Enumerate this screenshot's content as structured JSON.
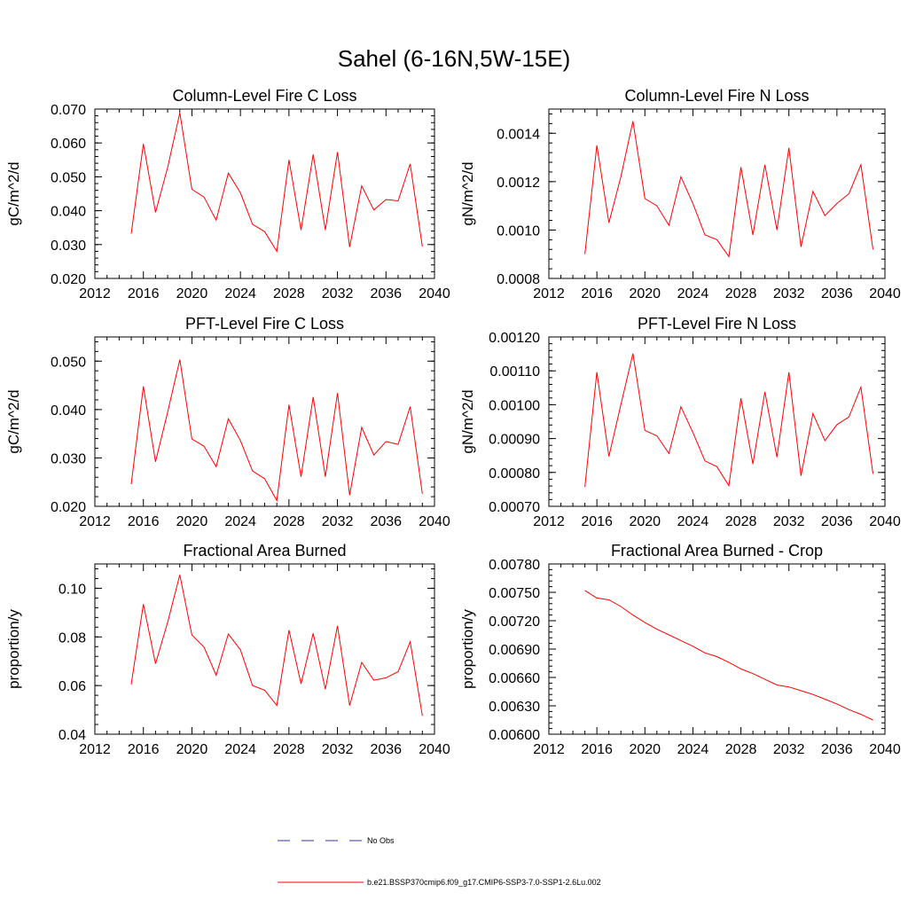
{
  "main_title": "Sahel (6-16N,5W-15E)",
  "colors": {
    "series": "#ff0000",
    "obs": "#3333aa",
    "axis": "#000000"
  },
  "legend": [
    {
      "label": "No Obs",
      "style": "dashed",
      "color": "#3333aa"
    },
    {
      "label": "b.e21.BSSP370cmip6.f09_g17.CMIP6-SSP3-7.0-SSP1-2.6Lu.002",
      "style": "solid",
      "color": "#ff0000"
    }
  ],
  "chart_data": [
    {
      "type": "line",
      "title": "Column-Level Fire C Loss",
      "ylabel": "gC/m^2/d",
      "xlim": [
        2012,
        2040
      ],
      "ylim": [
        0.02,
        0.07
      ],
      "xticks": [
        2012,
        2016,
        2020,
        2024,
        2028,
        2032,
        2036,
        2040
      ],
      "yticks": [
        "0.020",
        "0.030",
        "0.040",
        "0.050",
        "0.060",
        "0.070"
      ],
      "x": [
        2015,
        2016,
        2017,
        2018,
        2019,
        2020,
        2021,
        2022,
        2023,
        2024,
        2025,
        2026,
        2027,
        2028,
        2029,
        2030,
        2031,
        2032,
        2033,
        2034,
        2035,
        2036,
        2037,
        2038,
        2039
      ],
      "series": [
        {
          "values": [
            0.0332,
            0.0597,
            0.0395,
            0.0528,
            0.0689,
            0.0463,
            0.044,
            0.0372,
            0.0511,
            0.0453,
            0.036,
            0.0338,
            0.028,
            0.055,
            0.0343,
            0.0566,
            0.0343,
            0.0573,
            0.0293,
            0.0473,
            0.0402,
            0.0433,
            0.0429,
            0.0538,
            0.0294
          ]
        }
      ]
    },
    {
      "type": "line",
      "title": "Column-Level Fire N Loss",
      "ylabel": "gN/m^2/d",
      "xlim": [
        2012,
        2040
      ],
      "ylim": [
        0.0008,
        0.0015
      ],
      "xticks": [
        2012,
        2016,
        2020,
        2024,
        2028,
        2032,
        2036,
        2040
      ],
      "yticks": [
        "0.0008",
        "0.0010",
        "0.0012",
        "0.0014"
      ],
      "ytick_values": [
        0.0008,
        0.001,
        0.0012,
        0.0014
      ],
      "x": [
        2015,
        2016,
        2017,
        2018,
        2019,
        2020,
        2021,
        2022,
        2023,
        2024,
        2025,
        2026,
        2027,
        2028,
        2029,
        2030,
        2031,
        2032,
        2033,
        2034,
        2035,
        2036,
        2037,
        2038,
        2039
      ],
      "series": [
        {
          "values": [
            0.0009,
            0.00135,
            0.00103,
            0.00122,
            0.00145,
            0.00113,
            0.0011,
            0.00102,
            0.00122,
            0.00111,
            0.00098,
            0.00096,
            0.00089,
            0.00126,
            0.00098,
            0.00127,
            0.001,
            0.00134,
            0.00093,
            0.00116,
            0.00106,
            0.00111,
            0.00115,
            0.00127,
            0.00092
          ]
        }
      ]
    },
    {
      "type": "line",
      "title": "PFT-Level Fire C Loss",
      "ylabel": "gC/m^2/d",
      "xlim": [
        2012,
        2040
      ],
      "ylim": [
        0.02,
        0.055
      ],
      "xticks": [
        2012,
        2016,
        2020,
        2024,
        2028,
        2032,
        2036,
        2040
      ],
      "yticks": [
        "0.020",
        "0.030",
        "0.040",
        "0.050"
      ],
      "ytick_values": [
        0.02,
        0.03,
        0.04,
        0.05
      ],
      "x": [
        2015,
        2016,
        2017,
        2018,
        2019,
        2020,
        2021,
        2022,
        2023,
        2024,
        2025,
        2026,
        2027,
        2028,
        2029,
        2030,
        2031,
        2032,
        2033,
        2034,
        2035,
        2036,
        2037,
        2038,
        2039
      ],
      "series": [
        {
          "values": [
            0.0246,
            0.0448,
            0.0292,
            0.0395,
            0.0503,
            0.0339,
            0.0324,
            0.0282,
            0.0381,
            0.0336,
            0.0273,
            0.0257,
            0.0212,
            0.041,
            0.0261,
            0.0426,
            0.0261,
            0.0434,
            0.0223,
            0.0363,
            0.0306,
            0.0334,
            0.0328,
            0.0406,
            0.0226
          ]
        }
      ]
    },
    {
      "type": "line",
      "title": "PFT-Level Fire N Loss",
      "ylabel": "gN/m^2/d",
      "xlim": [
        2012,
        2040
      ],
      "ylim": [
        0.0007,
        0.0012
      ],
      "xticks": [
        2012,
        2016,
        2020,
        2024,
        2028,
        2032,
        2036,
        2040
      ],
      "yticks": [
        "0.00070",
        "0.00080",
        "0.00090",
        "0.00100",
        "0.00110",
        "0.00120"
      ],
      "ytick_values": [
        0.0007,
        0.0008,
        0.0009,
        0.001,
        0.0011,
        0.0012
      ],
      "x": [
        2015,
        2016,
        2017,
        2018,
        2019,
        2020,
        2021,
        2022,
        2023,
        2024,
        2025,
        2026,
        2027,
        2028,
        2029,
        2030,
        2031,
        2032,
        2033,
        2034,
        2035,
        2036,
        2037,
        2038,
        2039
      ],
      "series": [
        {
          "values": [
            0.000757,
            0.001096,
            0.000847,
            0.001,
            0.001151,
            0.000924,
            0.000908,
            0.000856,
            0.000994,
            0.000918,
            0.000834,
            0.000817,
            0.000761,
            0.001019,
            0.000825,
            0.001038,
            0.000845,
            0.001096,
            0.00079,
            0.000974,
            0.000894,
            0.000941,
            0.000964,
            0.001052,
            0.000796
          ]
        }
      ]
    },
    {
      "type": "line",
      "title": "Fractional Area Burned",
      "ylabel": "proportion/y",
      "xlim": [
        2012,
        2040
      ],
      "ylim": [
        0.04,
        0.11
      ],
      "xticks": [
        2012,
        2016,
        2020,
        2024,
        2028,
        2032,
        2036,
        2040
      ],
      "yticks": [
        "0.04",
        "0.06",
        "0.08",
        "0.10"
      ],
      "ytick_values": [
        0.04,
        0.06,
        0.08,
        0.1
      ],
      "x": [
        2015,
        2016,
        2017,
        2018,
        2019,
        2020,
        2021,
        2022,
        2023,
        2024,
        2025,
        2026,
        2027,
        2028,
        2029,
        2030,
        2031,
        2032,
        2033,
        2034,
        2035,
        2036,
        2037,
        2038,
        2039
      ],
      "series": [
        {
          "values": [
            0.0605,
            0.0935,
            0.069,
            0.086,
            0.1055,
            0.0808,
            0.0758,
            0.0642,
            0.0812,
            0.0747,
            0.06,
            0.0581,
            0.0518,
            0.0828,
            0.0607,
            0.0815,
            0.0585,
            0.0845,
            0.0518,
            0.0695,
            0.0622,
            0.0632,
            0.0657,
            0.078,
            0.0476
          ]
        }
      ]
    },
    {
      "type": "line",
      "title": "Fractional Area Burned - Crop",
      "ylabel": "proportion/y",
      "xlim": [
        2012,
        2040
      ],
      "ylim": [
        0.006,
        0.0078
      ],
      "xticks": [
        2012,
        2016,
        2020,
        2024,
        2028,
        2032,
        2036,
        2040
      ],
      "yticks": [
        "0.00600",
        "0.00630",
        "0.00660",
        "0.00690",
        "0.00720",
        "0.00750",
        "0.00780"
      ],
      "ytick_values": [
        0.006,
        0.0063,
        0.0066,
        0.0069,
        0.0072,
        0.0075,
        0.0078
      ],
      "x": [
        2015,
        2016,
        2017,
        2018,
        2019,
        2020,
        2021,
        2022,
        2023,
        2024,
        2025,
        2026,
        2027,
        2028,
        2029,
        2030,
        2031,
        2032,
        2033,
        2034,
        2035,
        2036,
        2037,
        2038,
        2039
      ],
      "series": [
        {
          "values": [
            0.00752,
            0.00744,
            0.00742,
            0.00735,
            0.00726,
            0.00718,
            0.00711,
            0.00705,
            0.00699,
            0.00693,
            0.00686,
            0.00682,
            0.00676,
            0.00669,
            0.00664,
            0.00658,
            0.00652,
            0.0065,
            0.00646,
            0.00642,
            0.00637,
            0.00632,
            0.00626,
            0.00621,
            0.00615
          ]
        }
      ]
    }
  ]
}
